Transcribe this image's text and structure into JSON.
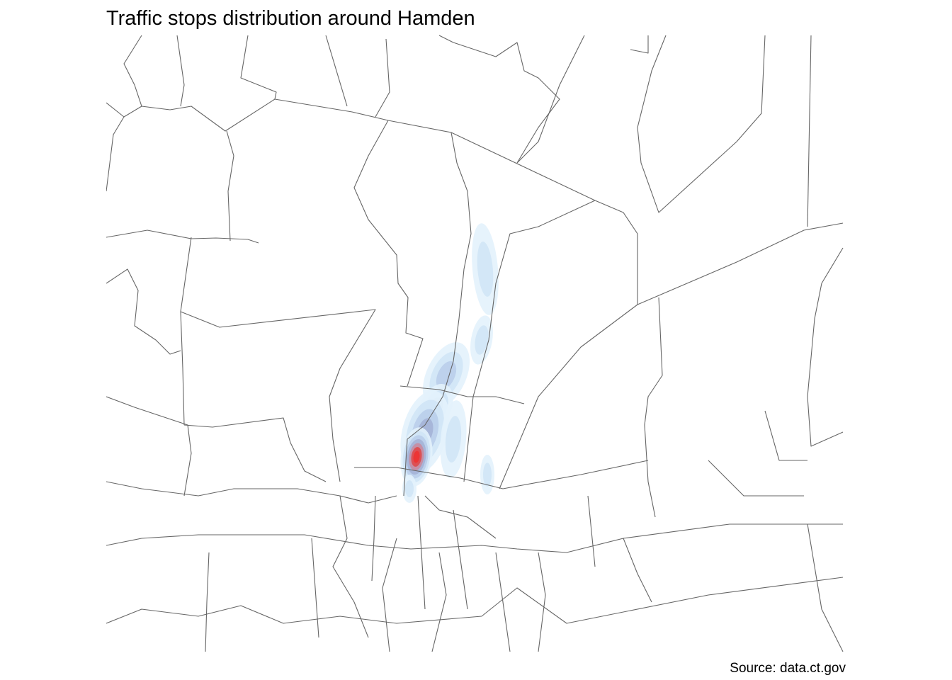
{
  "title": "Traffic stops distribution around Hamden",
  "caption": "Source: data.ct.gov",
  "map": {
    "layers": [
      "census tract boundaries",
      "traffic stop density"
    ],
    "boundary_color": "#666666",
    "density_colors": [
      "#e3f2fc",
      "#cfe4f6",
      "#b9cdea",
      "#a3b2d6",
      "#c98a9e",
      "#e04545",
      "#ee3030"
    ]
  }
}
